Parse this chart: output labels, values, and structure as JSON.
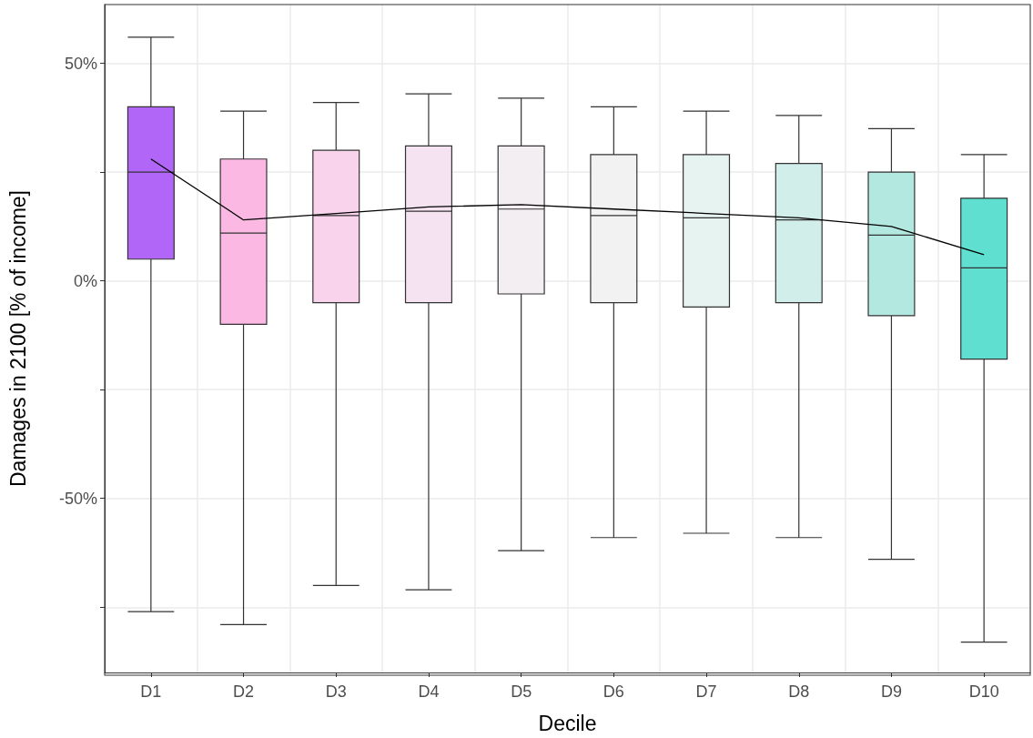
{
  "chart_data": {
    "type": "box",
    "xlabel": "Decile",
    "ylabel": "Damages in 2100 [% of income]",
    "categories": [
      "D1",
      "D2",
      "D3",
      "D4",
      "D5",
      "D6",
      "D7",
      "D8",
      "D9",
      "D10"
    ],
    "colors": [
      "#b266f7",
      "#fbb8e3",
      "#f9d2ec",
      "#f6e3f1",
      "#f3eef2",
      "#f2f2f2",
      "#e6f3f1",
      "#d2eeea",
      "#b3e8e0",
      "#5fdfd0"
    ],
    "boxes": [
      {
        "low": -76,
        "q1": 5,
        "median": 25,
        "q3": 40,
        "high": 56
      },
      {
        "low": -79,
        "q1": -10,
        "median": 11,
        "q3": 28,
        "high": 39
      },
      {
        "low": -70,
        "q1": -5,
        "median": 15,
        "q3": 30,
        "high": 41
      },
      {
        "low": -71,
        "q1": -5,
        "median": 16,
        "q3": 31,
        "high": 43
      },
      {
        "low": -62,
        "q1": -3,
        "median": 16.5,
        "q3": 31,
        "high": 42
      },
      {
        "low": -59,
        "q1": -5,
        "median": 15,
        "q3": 29,
        "high": 40
      },
      {
        "low": -58,
        "q1": -6,
        "median": 14.5,
        "q3": 29,
        "high": 39
      },
      {
        "low": -59,
        "q1": -5,
        "median": 14,
        "q3": 27,
        "high": 38
      },
      {
        "low": -64,
        "q1": -8,
        "median": 10.5,
        "q3": 25,
        "high": 35
      },
      {
        "low": -83,
        "q1": -18,
        "median": 3,
        "q3": 19,
        "high": 29
      }
    ],
    "series": [
      {
        "type": "line",
        "color": "#000000",
        "values": [
          28,
          14,
          15.5,
          17,
          17.5,
          16.5,
          15.5,
          14.5,
          12.5,
          6
        ]
      }
    ],
    "ylim": [
      -90,
      63.5
    ],
    "yticks": [
      {
        "value": -75,
        "label": null
      },
      {
        "value": -50,
        "label": "-50%"
      },
      {
        "value": -25,
        "label": null
      },
      {
        "value": 0,
        "label": "0%"
      },
      {
        "value": 25,
        "label": null
      },
      {
        "value": 50,
        "label": "50%"
      }
    ],
    "grid": true,
    "legend": false,
    "marker": "none",
    "line_style": "solid"
  }
}
